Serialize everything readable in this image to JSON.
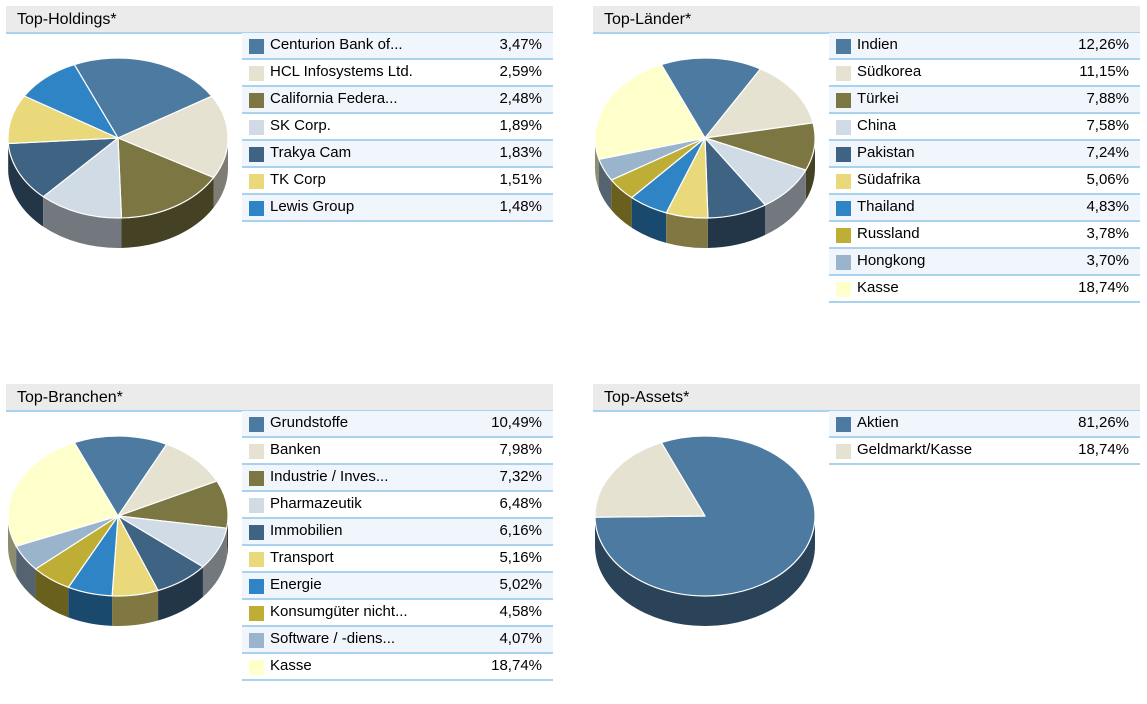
{
  "chart_data": [
    {
      "type": "pie",
      "title": "Top-Holdings*",
      "value_unit": "%",
      "categories": [
        "Centurion Bank of...",
        "HCL Infosystems Ltd.",
        "California Federa...",
        "SK Corp.",
        "Trakya Cam",
        "TK Corp",
        "Lewis Group"
      ],
      "values": [
        3.47,
        2.59,
        2.48,
        1.89,
        1.83,
        1.51,
        1.48
      ],
      "labels": [
        "3,47%",
        "2,59%",
        "2,48%",
        "1,89%",
        "1,83%",
        "1,51%",
        "1,48%"
      ],
      "colors": [
        "#4d7aa0",
        "#e6e2d1",
        "#7b7642",
        "#d0dbe5",
        "#3f6383",
        "#e9d97a",
        "#2e84c4"
      ]
    },
    {
      "type": "pie",
      "title": "Top-Länder*",
      "value_unit": "%",
      "categories": [
        "Indien",
        "Südkorea",
        "Türkei",
        "China",
        "Pakistan",
        "Südafrika",
        "Thailand",
        "Russland",
        "Hongkong",
        "Kasse"
      ],
      "values": [
        12.26,
        11.15,
        7.88,
        7.58,
        7.24,
        5.06,
        4.83,
        3.78,
        3.7,
        18.74
      ],
      "labels": [
        "12,26%",
        "11,15%",
        "7,88%",
        "7,58%",
        "7,24%",
        "5,06%",
        "4,83%",
        "3,78%",
        "3,70%",
        "18,74%"
      ],
      "colors": [
        "#4d7aa0",
        "#e6e2d1",
        "#7b7642",
        "#d0dbe5",
        "#3f6383",
        "#e9d97a",
        "#2e84c4",
        "#bfae36",
        "#9ab4cb",
        "#ffffcc"
      ]
    },
    {
      "type": "pie",
      "title": "Top-Branchen*",
      "value_unit": "%",
      "categories": [
        "Grundstoffe",
        "Banken",
        "Industrie / Inves...",
        "Pharmazeutik",
        "Immobilien",
        "Transport",
        "Energie",
        "Konsumgüter nicht...",
        "Software / -diens...",
        "Kasse"
      ],
      "values": [
        10.49,
        7.98,
        7.32,
        6.48,
        6.16,
        5.16,
        5.02,
        4.58,
        4.07,
        18.74
      ],
      "labels": [
        "10,49%",
        "7,98%",
        "7,32%",
        "6,48%",
        "6,16%",
        "5,16%",
        "5,02%",
        "4,58%",
        "4,07%",
        "18,74%"
      ],
      "colors": [
        "#4d7aa0",
        "#e6e2d1",
        "#7b7642",
        "#d0dbe5",
        "#3f6383",
        "#e9d97a",
        "#2e84c4",
        "#bfae36",
        "#9ab4cb",
        "#ffffcc"
      ]
    },
    {
      "type": "pie",
      "title": "Top-Assets*",
      "value_unit": "%",
      "categories": [
        "Aktien",
        "Geldmarkt/Kasse"
      ],
      "values": [
        81.26,
        18.74
      ],
      "labels": [
        "81,26%",
        "18,74%"
      ],
      "colors": [
        "#4d7aa0",
        "#e6e2d1"
      ]
    }
  ]
}
